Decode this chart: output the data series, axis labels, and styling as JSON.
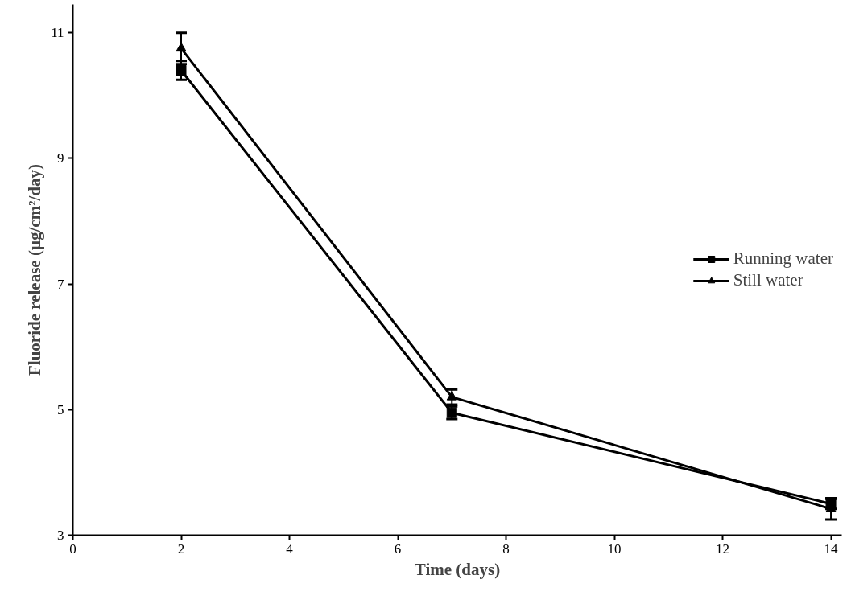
{
  "chart_data": {
    "type": "line",
    "xlabel": "Time (days)",
    "ylabel": "Fluoride release (µg/cm²/day)",
    "x": [
      2,
      7,
      14
    ],
    "series": [
      {
        "name": "Running water",
        "color": "#000000",
        "marker": "square",
        "values": [
          10.4,
          4.95,
          3.5
        ],
        "errors": [
          0.15,
          0.1,
          0.08
        ]
      },
      {
        "name": "Still water",
        "color": "#000000",
        "marker": "triangle",
        "values": [
          10.75,
          5.2,
          3.42
        ],
        "errors": [
          0.25,
          0.12,
          0.17
        ]
      }
    ],
    "xlim": [
      0,
      14.2
    ],
    "xticks": [
      0,
      2,
      4,
      6,
      8,
      10,
      12,
      14
    ],
    "ylim": [
      3,
      11.45
    ],
    "yticks": [
      3,
      5,
      7,
      9,
      11
    ],
    "grid": false,
    "legend": "right",
    "line_style": "solid"
  }
}
